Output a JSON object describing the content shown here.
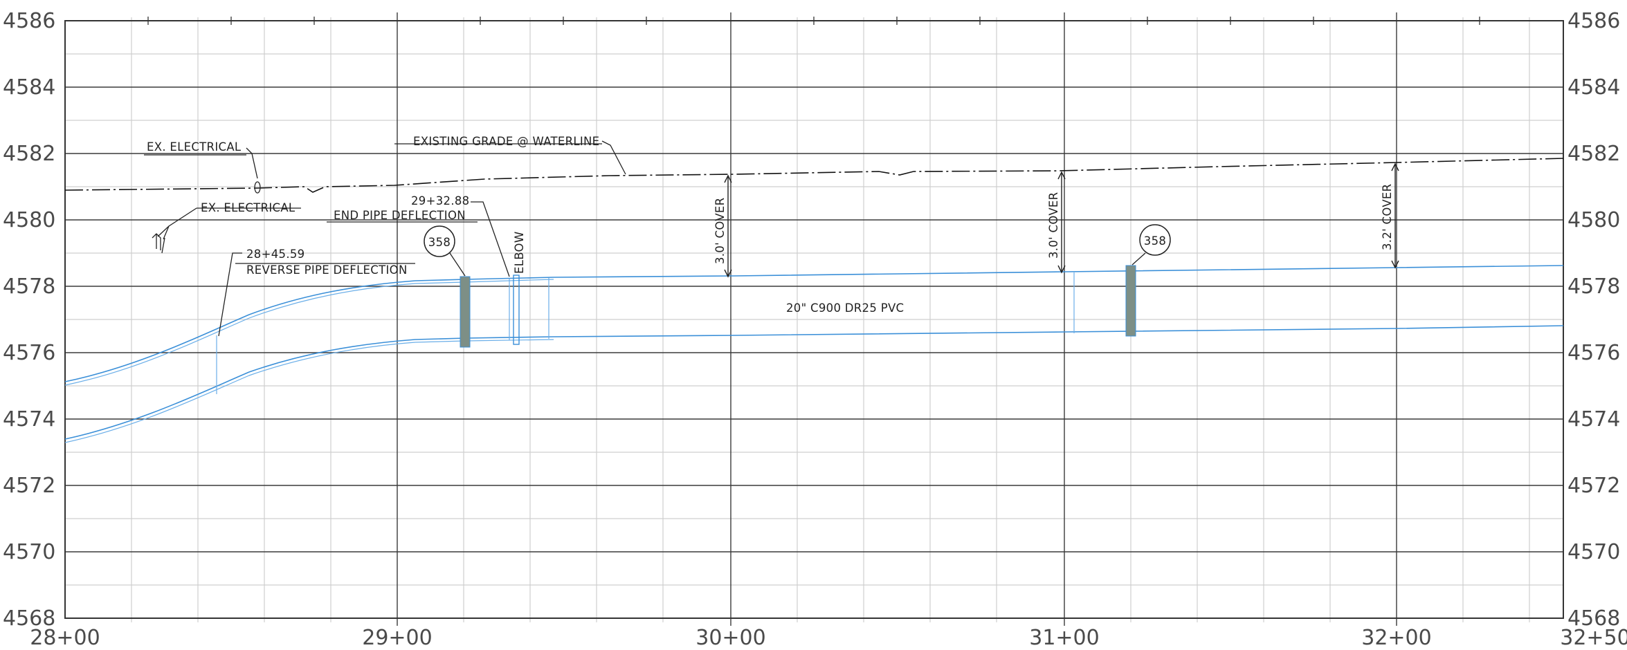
{
  "elevation_labels": [
    "4586",
    "4584",
    "4582",
    "4580",
    "4578",
    "4576",
    "4574",
    "4572",
    "4570",
    "4568"
  ],
  "station_labels": [
    "28+00",
    "29+00",
    "30+00",
    "31+00",
    "32+00",
    "32+50"
  ],
  "annotations": {
    "ex_electrical_top": "EX. ELECTRICAL",
    "ex_electrical_bottom": "EX. ELECTRICAL",
    "existing_grade": "EXISTING GRADE @ WATERLINE",
    "end_deflection_station": "29+32.88",
    "end_deflection_label": "END PIPE DEFLECTION",
    "reverse_deflection_station": "28+45.59",
    "reverse_deflection_label": "REVERSE PIPE DEFLECTION",
    "elbow": "ELBOW",
    "cover_1": "3.0' COVER",
    "cover_2": "3.0' COVER",
    "cover_3": "3.2' COVER",
    "pipe_spec": "20\" C900 DR25 PVC",
    "callout_1": "358",
    "callout_2": "358"
  },
  "colors": {
    "pipe": "#3a8fd8",
    "fitting": "#7d8f86",
    "grid_major": "#3a3a3a",
    "grid_minor": "#cfcfcf"
  }
}
